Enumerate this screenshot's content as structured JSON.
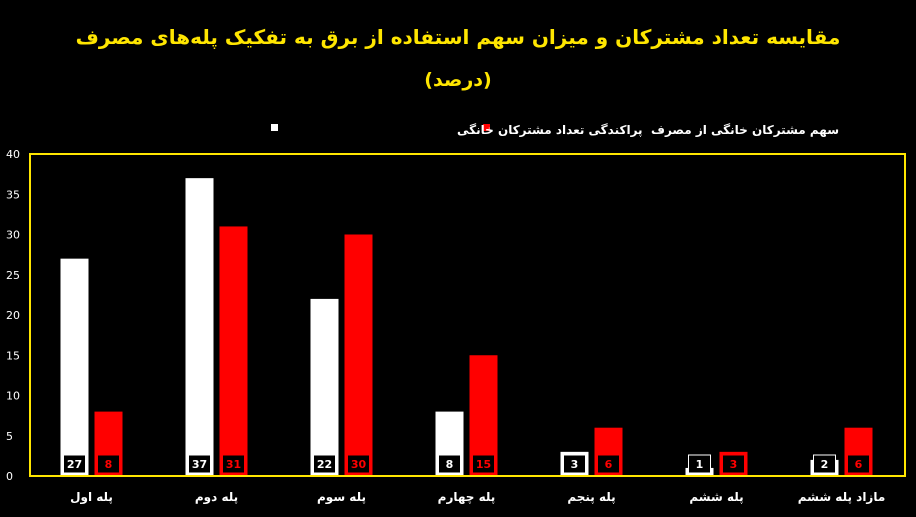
{
  "chart_data": {
    "type": "bar",
    "title": "مقایسه تعداد مشترکان و میزان سهم استفاده از برق به تفکیک پله‌های مصرف",
    "subtitle": "(درصد)",
    "categories": [
      "پله اول",
      "پله دوم",
      "پله سوم",
      "پله چهارم",
      "پله پنجم",
      "پله ششم",
      "مازاد پله ششم"
    ],
    "series": [
      {
        "name": "پراکندگی تعداد مشترکان خانگی",
        "color": "#FFFFFF",
        "values": [
          27,
          37,
          22,
          8,
          3,
          1,
          2
        ]
      },
      {
        "name": "سهم مشترکان خانگی از مصرف",
        "color": "#FF0000",
        "values": [
          8,
          31,
          30,
          15,
          6,
          3,
          6
        ]
      }
    ],
    "ylim": [
      0,
      40
    ],
    "yticks": [
      0,
      5,
      10,
      15,
      20,
      25,
      30,
      35,
      40
    ],
    "legend_position": "top-center",
    "grid": false,
    "colors": {
      "background": "#000000",
      "title": "#FFE600",
      "plot_border": "#FFE600",
      "axis_text": "#FFFFFF"
    }
  }
}
